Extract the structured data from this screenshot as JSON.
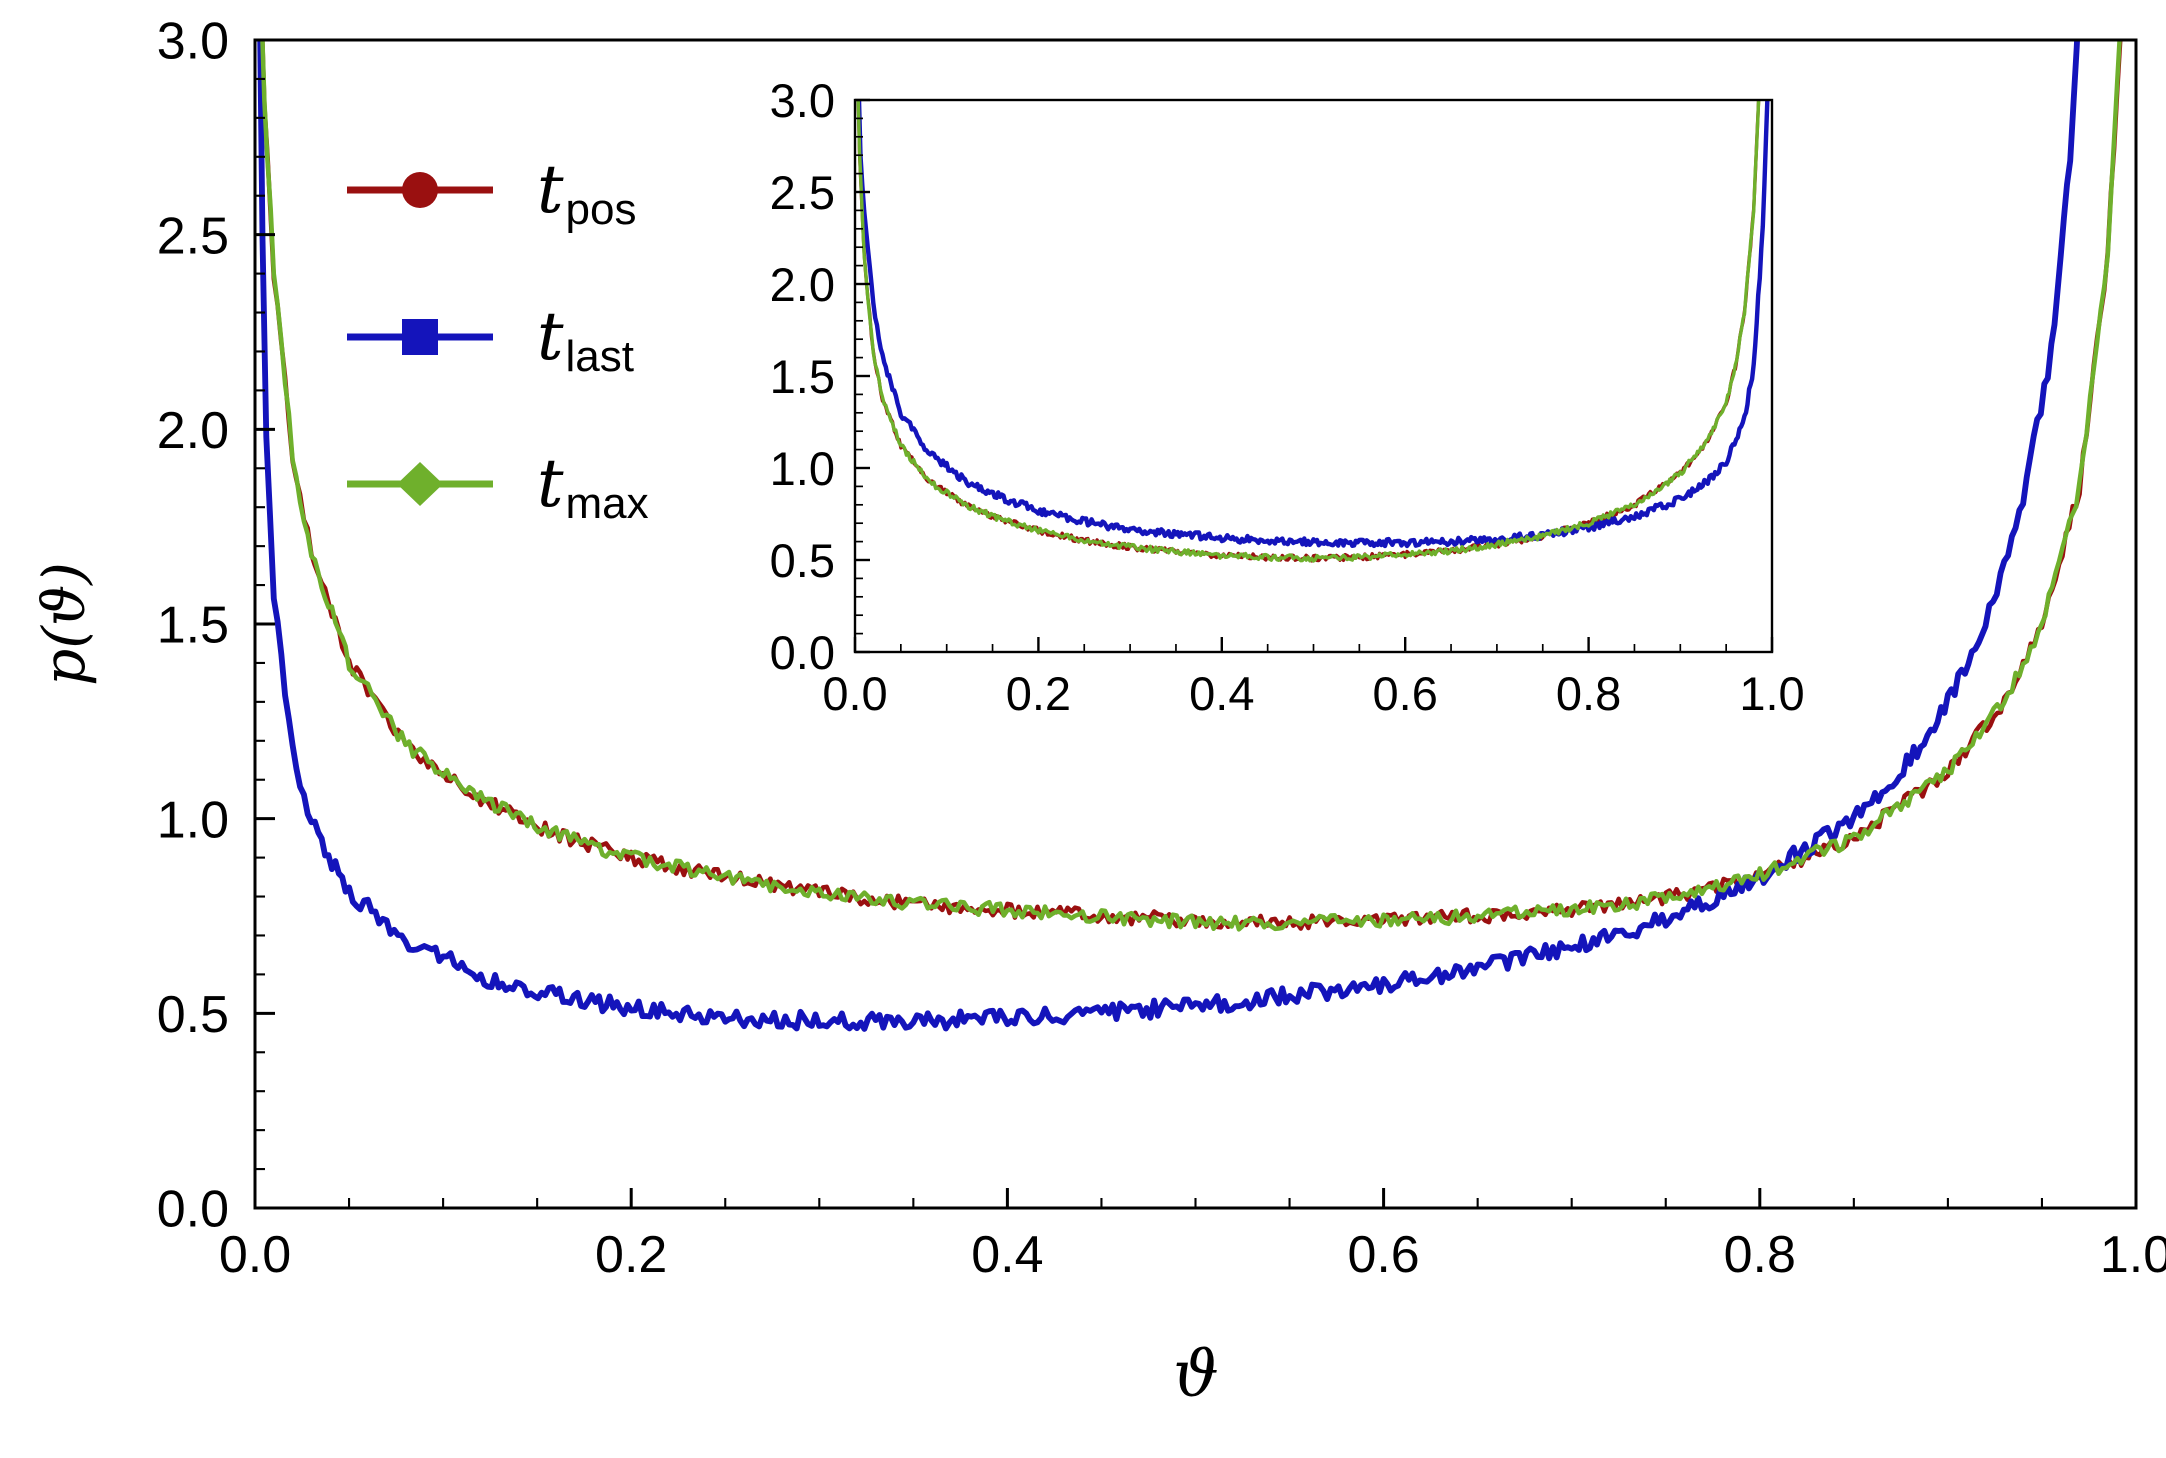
{
  "figure": {
    "xlabel": "ϑ",
    "ylabel": "p(ϑ)",
    "background_color": "#ffffff",
    "frame_color": "#000000",
    "legend": [
      {
        "id": "t-pos",
        "label_main": "t",
        "label_sub": "pos",
        "marker": "circle",
        "color": "#9a1010"
      },
      {
        "id": "t-last",
        "label_main": "t",
        "label_sub": "last",
        "marker": "square",
        "color": "#1414bb"
      },
      {
        "id": "t-max",
        "label_main": "t",
        "label_sub": "max",
        "marker": "diamond",
        "color": "#6fb02c"
      }
    ]
  },
  "chart_data": [
    {
      "id": "main",
      "type": "line",
      "title": "",
      "xlabel": "ϑ",
      "ylabel": "p(ϑ)",
      "xlim": [
        0,
        1
      ],
      "ylim": [
        0,
        3
      ],
      "xticks": [
        "0.0",
        "0.2",
        "0.4",
        "0.6",
        "0.8",
        "1.0"
      ],
      "yticks": [
        "0.0",
        "0.5",
        "1.0",
        "1.5",
        "2.0",
        "2.5",
        "3.0"
      ],
      "grid": false,
      "legend_position": "top-left",
      "series": [
        {
          "name": "t_pos",
          "color": "#9a1010",
          "noise": 0.018,
          "points": [
            [
              0.002,
              3.3
            ],
            [
              0.005,
              2.85
            ],
            [
              0.01,
              2.4
            ],
            [
              0.02,
              1.93
            ],
            [
              0.03,
              1.68
            ],
            [
              0.05,
              1.4
            ],
            [
              0.08,
              1.19
            ],
            [
              0.12,
              1.05
            ],
            [
              0.16,
              0.96
            ],
            [
              0.2,
              0.9
            ],
            [
              0.25,
              0.85
            ],
            [
              0.3,
              0.81
            ],
            [
              0.35,
              0.78
            ],
            [
              0.4,
              0.765
            ],
            [
              0.45,
              0.75
            ],
            [
              0.5,
              0.74
            ],
            [
              0.55,
              0.735
            ],
            [
              0.6,
              0.74
            ],
            [
              0.65,
              0.75
            ],
            [
              0.7,
              0.765
            ],
            [
              0.75,
              0.795
            ],
            [
              0.8,
              0.855
            ],
            [
              0.85,
              0.95
            ],
            [
              0.9,
              1.12
            ],
            [
              0.93,
              1.3
            ],
            [
              0.95,
              1.5
            ],
            [
              0.97,
              1.85
            ],
            [
              0.985,
              2.45
            ],
            [
              0.995,
              3.3
            ]
          ]
        },
        {
          "name": "t_last",
          "color": "#1414bb",
          "noise": 0.022,
          "points": [
            [
              0.002,
              3.3
            ],
            [
              0.004,
              2.5
            ],
            [
              0.006,
              2.0
            ],
            [
              0.01,
              1.58
            ],
            [
              0.02,
              1.17
            ],
            [
              0.03,
              0.99
            ],
            [
              0.05,
              0.81
            ],
            [
              0.08,
              0.69
            ],
            [
              0.12,
              0.595
            ],
            [
              0.16,
              0.545
            ],
            [
              0.2,
              0.515
            ],
            [
              0.25,
              0.49
            ],
            [
              0.3,
              0.48
            ],
            [
              0.35,
              0.48
            ],
            [
              0.4,
              0.487
            ],
            [
              0.45,
              0.5
            ],
            [
              0.5,
              0.52
            ],
            [
              0.55,
              0.545
            ],
            [
              0.6,
              0.575
            ],
            [
              0.65,
              0.615
            ],
            [
              0.7,
              0.67
            ],
            [
              0.75,
              0.74
            ],
            [
              0.8,
              0.85
            ],
            [
              0.85,
              1.0
            ],
            [
              0.88,
              1.15
            ],
            [
              0.9,
              1.3
            ],
            [
              0.92,
              1.5
            ],
            [
              0.94,
              1.82
            ],
            [
              0.955,
              2.2
            ],
            [
              0.965,
              2.7
            ],
            [
              0.972,
              3.3
            ]
          ]
        },
        {
          "name": "t_max",
          "color": "#6fb02c",
          "noise": 0.018,
          "points": [
            [
              0.002,
              3.3
            ],
            [
              0.005,
              2.85
            ],
            [
              0.01,
              2.4
            ],
            [
              0.02,
              1.93
            ],
            [
              0.03,
              1.68
            ],
            [
              0.05,
              1.4
            ],
            [
              0.08,
              1.19
            ],
            [
              0.12,
              1.05
            ],
            [
              0.16,
              0.96
            ],
            [
              0.2,
              0.9
            ],
            [
              0.25,
              0.85
            ],
            [
              0.3,
              0.81
            ],
            [
              0.35,
              0.78
            ],
            [
              0.4,
              0.765
            ],
            [
              0.45,
              0.75
            ],
            [
              0.5,
              0.735
            ],
            [
              0.55,
              0.73
            ],
            [
              0.6,
              0.74
            ],
            [
              0.65,
              0.75
            ],
            [
              0.7,
              0.765
            ],
            [
              0.75,
              0.795
            ],
            [
              0.8,
              0.855
            ],
            [
              0.85,
              0.95
            ],
            [
              0.9,
              1.12
            ],
            [
              0.93,
              1.3
            ],
            [
              0.95,
              1.5
            ],
            [
              0.97,
              1.85
            ],
            [
              0.985,
              2.45
            ],
            [
              0.995,
              3.3
            ]
          ]
        }
      ]
    },
    {
      "id": "inset",
      "type": "line",
      "title": "",
      "xlabel": "",
      "ylabel": "",
      "xlim": [
        0,
        1
      ],
      "ylim": [
        0,
        3
      ],
      "xticks": [
        "0.0",
        "0.2",
        "0.4",
        "0.6",
        "0.8",
        "1.0"
      ],
      "yticks": [
        "0.0",
        "0.5",
        "1.0",
        "1.5",
        "2.0",
        "2.5",
        "3.0"
      ],
      "grid": false,
      "legend_position": "none",
      "series": [
        {
          "name": "t_pos",
          "color": "#9a1010",
          "noise": 0.016,
          "points": [
            [
              0.002,
              3.3
            ],
            [
              0.005,
              2.7
            ],
            [
              0.01,
              2.15
            ],
            [
              0.02,
              1.62
            ],
            [
              0.03,
              1.38
            ],
            [
              0.05,
              1.12
            ],
            [
              0.08,
              0.93
            ],
            [
              0.12,
              0.8
            ],
            [
              0.16,
              0.72
            ],
            [
              0.2,
              0.66
            ],
            [
              0.25,
              0.605
            ],
            [
              0.3,
              0.57
            ],
            [
              0.35,
              0.545
            ],
            [
              0.4,
              0.525
            ],
            [
              0.45,
              0.515
            ],
            [
              0.5,
              0.51
            ],
            [
              0.55,
              0.515
            ],
            [
              0.6,
              0.53
            ],
            [
              0.65,
              0.55
            ],
            [
              0.7,
              0.585
            ],
            [
              0.75,
              0.63
            ],
            [
              0.8,
              0.7
            ],
            [
              0.85,
              0.8
            ],
            [
              0.9,
              0.97
            ],
            [
              0.93,
              1.15
            ],
            [
              0.95,
              1.35
            ],
            [
              0.96,
              1.55
            ],
            [
              0.97,
              1.85
            ],
            [
              0.98,
              2.4
            ],
            [
              0.988,
              3.3
            ]
          ]
        },
        {
          "name": "t_last",
          "color": "#1414bb",
          "noise": 0.02,
          "points": [
            [
              0.003,
              3.3
            ],
            [
              0.006,
              2.7
            ],
            [
              0.01,
              2.4
            ],
            [
              0.02,
              1.88
            ],
            [
              0.03,
              1.6
            ],
            [
              0.05,
              1.3
            ],
            [
              0.08,
              1.09
            ],
            [
              0.12,
              0.93
            ],
            [
              0.16,
              0.84
            ],
            [
              0.2,
              0.77
            ],
            [
              0.25,
              0.71
            ],
            [
              0.3,
              0.665
            ],
            [
              0.35,
              0.64
            ],
            [
              0.4,
              0.62
            ],
            [
              0.45,
              0.605
            ],
            [
              0.5,
              0.6
            ],
            [
              0.55,
              0.595
            ],
            [
              0.6,
              0.595
            ],
            [
              0.65,
              0.6
            ],
            [
              0.7,
              0.615
            ],
            [
              0.75,
              0.635
            ],
            [
              0.8,
              0.675
            ],
            [
              0.85,
              0.735
            ],
            [
              0.9,
              0.83
            ],
            [
              0.93,
              0.93
            ],
            [
              0.95,
              1.03
            ],
            [
              0.97,
              1.27
            ],
            [
              0.98,
              1.55
            ],
            [
              0.99,
              2.3
            ],
            [
              0.997,
              3.3
            ]
          ]
        },
        {
          "name": "t_max",
          "color": "#6fb02c",
          "noise": 0.016,
          "points": [
            [
              0.002,
              3.3
            ],
            [
              0.005,
              2.7
            ],
            [
              0.01,
              2.15
            ],
            [
              0.02,
              1.62
            ],
            [
              0.03,
              1.38
            ],
            [
              0.05,
              1.12
            ],
            [
              0.08,
              0.93
            ],
            [
              0.12,
              0.8
            ],
            [
              0.16,
              0.72
            ],
            [
              0.2,
              0.66
            ],
            [
              0.25,
              0.605
            ],
            [
              0.3,
              0.57
            ],
            [
              0.35,
              0.545
            ],
            [
              0.4,
              0.525
            ],
            [
              0.45,
              0.515
            ],
            [
              0.5,
              0.51
            ],
            [
              0.55,
              0.515
            ],
            [
              0.6,
              0.53
            ],
            [
              0.65,
              0.55
            ],
            [
              0.7,
              0.585
            ],
            [
              0.75,
              0.63
            ],
            [
              0.8,
              0.7
            ],
            [
              0.85,
              0.8
            ],
            [
              0.9,
              0.97
            ],
            [
              0.93,
              1.15
            ],
            [
              0.95,
              1.35
            ],
            [
              0.96,
              1.55
            ],
            [
              0.97,
              1.85
            ],
            [
              0.98,
              2.4
            ],
            [
              0.988,
              3.3
            ]
          ]
        }
      ]
    }
  ]
}
